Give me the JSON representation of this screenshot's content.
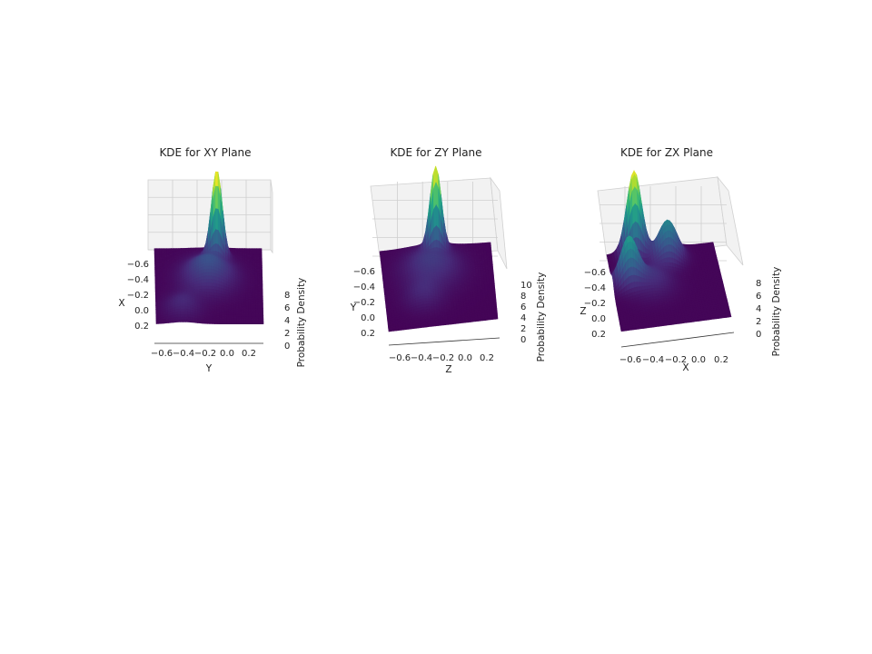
{
  "figure": {
    "background": "#ffffff",
    "colormap": "viridis"
  },
  "chart_data": [
    {
      "type": "surface",
      "title": "KDE for XY Plane",
      "xlabel": "Y",
      "ylabel": "X",
      "zlabel": "Probability Density",
      "x_ticks": [
        "−0.6",
        "−0.4",
        "−0.2",
        "0.0",
        "0.2"
      ],
      "y_ticks": [
        "−0.6",
        "−0.4",
        "−0.2",
        "0.0",
        "0.2"
      ],
      "z_ticks": [
        "0",
        "2",
        "4",
        "6",
        "8"
      ],
      "xlim": [
        -0.7,
        0.3
      ],
      "ylim": [
        -0.7,
        0.3
      ],
      "zlim": [
        0,
        9
      ],
      "grid": true,
      "peaks": [
        {
          "u": -0.12,
          "v": -0.55,
          "height": 9.0,
          "spread": 0.05
        },
        {
          "u": -0.2,
          "v": -0.3,
          "height": 2.2,
          "spread": 0.16
        },
        {
          "u": -0.45,
          "v": 0.1,
          "height": 0.9,
          "spread": 0.12
        }
      ]
    },
    {
      "type": "surface",
      "title": "KDE for ZY Plane",
      "xlabel": "Z",
      "ylabel": "Y",
      "zlabel": "Probability Density",
      "x_ticks": [
        "−0.6",
        "−0.4",
        "−0.2",
        "0.0",
        "0.2"
      ],
      "y_ticks": [
        "−0.6",
        "−0.4",
        "−0.2",
        "0.0",
        "0.2"
      ],
      "z_ticks": [
        "0",
        "2",
        "4",
        "6",
        "8",
        "10"
      ],
      "xlim": [
        -0.7,
        0.3
      ],
      "ylim": [
        -0.7,
        0.3
      ],
      "zlim": [
        0,
        11
      ],
      "grid": true,
      "peaks": [
        {
          "u": -0.2,
          "v": -0.62,
          "height": 10.5,
          "spread": 0.05
        },
        {
          "u": -0.25,
          "v": -0.4,
          "height": 1.8,
          "spread": 0.18
        },
        {
          "u": -0.35,
          "v": -0.05,
          "height": 1.0,
          "spread": 0.12
        }
      ]
    },
    {
      "type": "surface",
      "title": "KDE for ZX Plane",
      "xlabel": "X",
      "ylabel": "Z",
      "zlabel": "Probability Density",
      "x_ticks": [
        "−0.6",
        "−0.4",
        "−0.2",
        "0.0",
        "0.2"
      ],
      "y_ticks": [
        "−0.6",
        "−0.4",
        "−0.2",
        "0.0",
        "0.2"
      ],
      "z_ticks": [
        "0",
        "2",
        "4",
        "6",
        "8"
      ],
      "xlim": [
        -0.7,
        0.3
      ],
      "ylim": [
        -0.7,
        0.3
      ],
      "zlim": [
        0,
        9
      ],
      "grid": true,
      "peaks": [
        {
          "u": -0.45,
          "v": -0.65,
          "height": 8.8,
          "spread": 0.07
        },
        {
          "u": -0.55,
          "v": -0.3,
          "height": 4.5,
          "spread": 0.08
        },
        {
          "u": -0.15,
          "v": -0.55,
          "height": 4.0,
          "spread": 0.09
        },
        {
          "u": -0.35,
          "v": -0.25,
          "height": 1.2,
          "spread": 0.14
        }
      ]
    }
  ]
}
